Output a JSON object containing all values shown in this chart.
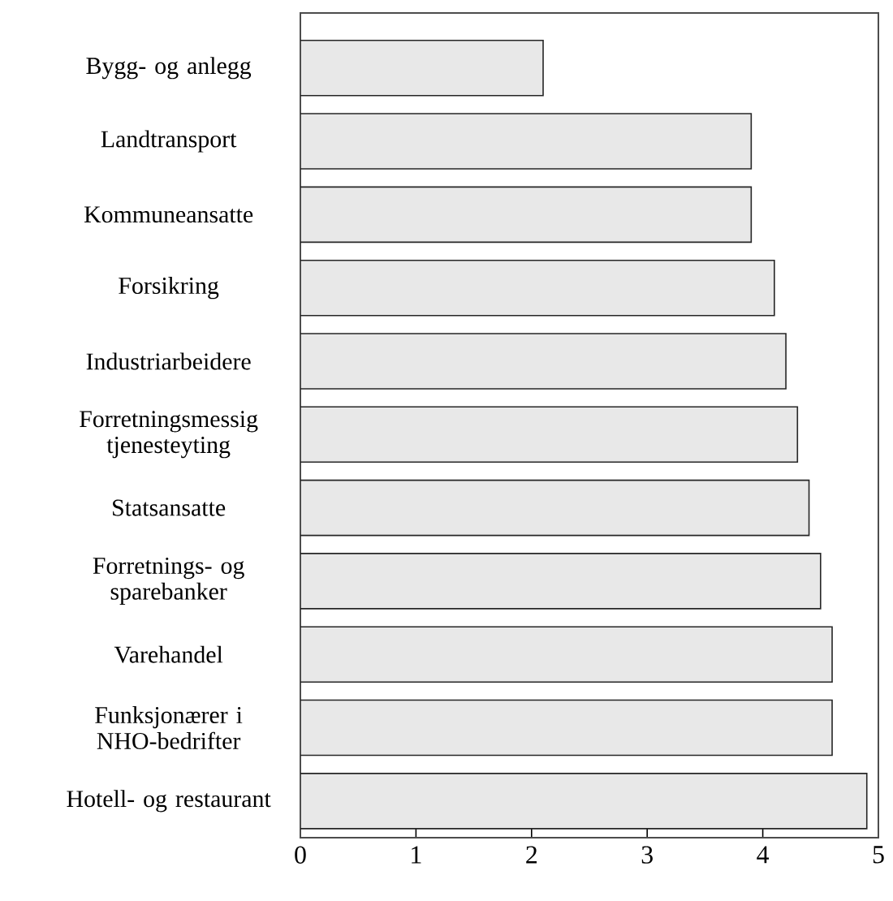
{
  "chart_data": {
    "type": "bar",
    "orientation": "horizontal",
    "categories": [
      "Bygg- og anlegg",
      "Landtransport",
      "Kommuneansatte",
      "Forsikring",
      "Industriarbeidere",
      "Forretningsmessig tjenesteyting",
      "Statsansatte",
      "Forretnings- og sparebanker",
      "Varehandel",
      "Funksjonærer i NHO-bedrifter",
      "Hotell- og restaurant"
    ],
    "values": [
      2.1,
      3.9,
      3.9,
      4.1,
      4.2,
      4.3,
      4.4,
      4.5,
      4.6,
      4.6,
      4.9
    ],
    "color": "#e8e8e8",
    "xlim": [
      0,
      5
    ],
    "xticks": [
      0,
      1,
      2,
      3,
      4,
      5
    ],
    "grid": false
  }
}
